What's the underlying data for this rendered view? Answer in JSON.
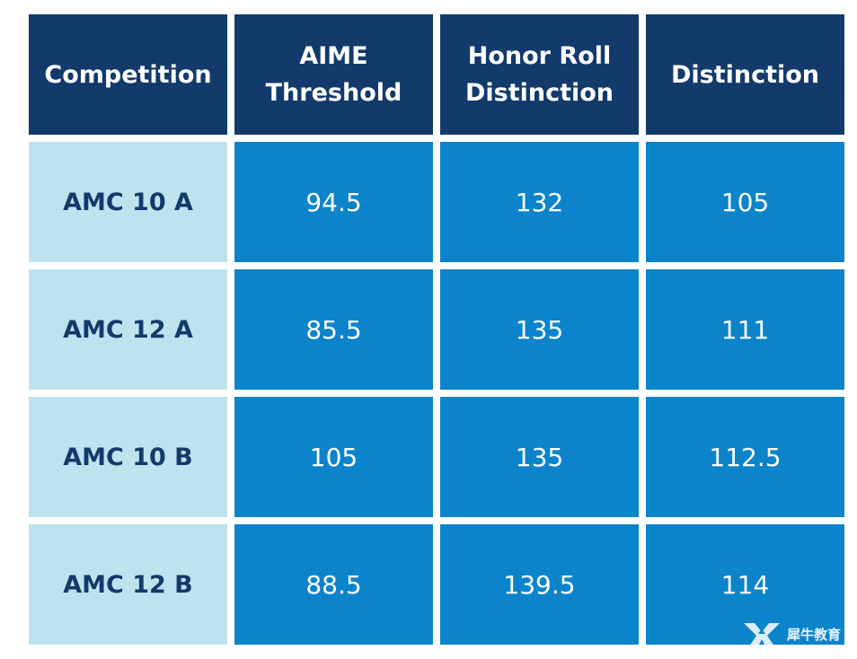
{
  "table": {
    "headers": [
      "Competition",
      "AIME\nThreshold",
      "Honor Roll\nDistinction",
      "Distinction"
    ],
    "rows": [
      {
        "competition": "AMC 10 A",
        "aime_threshold": "94.5",
        "honor_roll_distinction": "132",
        "distinction": "105"
      },
      {
        "competition": "AMC 12 A",
        "aime_threshold": "85.5",
        "honor_roll_distinction": "135",
        "distinction": "111"
      },
      {
        "competition": "AMC 10 B",
        "aime_threshold": "105",
        "honor_roll_distinction": "135",
        "distinction": "112.5"
      },
      {
        "competition": "AMC 12 B",
        "aime_threshold": "88.5",
        "honor_roll_distinction": "139.5",
        "distinction": "114"
      }
    ]
  },
  "watermark": {
    "text": "犀牛教育",
    "logo_icon": "rhino-logo-icon"
  },
  "colors": {
    "header_bg": "#123a6b",
    "rowhead_bg": "#bfe3ee",
    "rowhead_text": "#123a6b",
    "value_bg": "#0b84cc",
    "value_text": "#ffffff"
  }
}
